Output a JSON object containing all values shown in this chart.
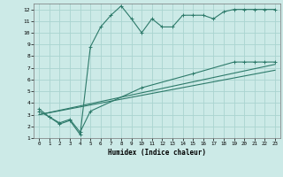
{
  "bg_color": "#cceae7",
  "grid_color": "#aad4d0",
  "line_color": "#2d7a6a",
  "xlim": [
    -0.5,
    23.5
  ],
  "ylim": [
    1,
    12.5
  ],
  "xlabel": "Humidex (Indice chaleur)",
  "yticks": [
    1,
    2,
    3,
    4,
    5,
    6,
    7,
    8,
    9,
    10,
    11,
    12
  ],
  "xticks": [
    0,
    1,
    2,
    3,
    4,
    5,
    6,
    7,
    8,
    9,
    10,
    11,
    12,
    13,
    14,
    15,
    16,
    17,
    18,
    19,
    20,
    21,
    22,
    23
  ],
  "line1_x": [
    0,
    1,
    2,
    3,
    4,
    5,
    6,
    7,
    8,
    9,
    10,
    11,
    12,
    13,
    14,
    15,
    16,
    17,
    18,
    19,
    20,
    21,
    22,
    23
  ],
  "line1_y": [
    3.5,
    2.8,
    2.2,
    2.5,
    1.3,
    8.8,
    10.5,
    11.5,
    12.3,
    11.2,
    10.0,
    11.2,
    10.5,
    10.5,
    11.5,
    11.5,
    11.5,
    11.2,
    11.8,
    12.0,
    12.0,
    12.0,
    12.0,
    12.0
  ],
  "line2_x": [
    0,
    1,
    2,
    3,
    4,
    5,
    10,
    15,
    19,
    20,
    21,
    22,
    23
  ],
  "line2_y": [
    3.3,
    2.8,
    2.3,
    2.6,
    1.5,
    3.3,
    5.3,
    6.5,
    7.5,
    7.5,
    7.5,
    7.5,
    7.5
  ],
  "line3_x": [
    0,
    23
  ],
  "line3_y": [
    3.0,
    7.3
  ],
  "line4_x": [
    0,
    23
  ],
  "line4_y": [
    3.0,
    6.8
  ]
}
